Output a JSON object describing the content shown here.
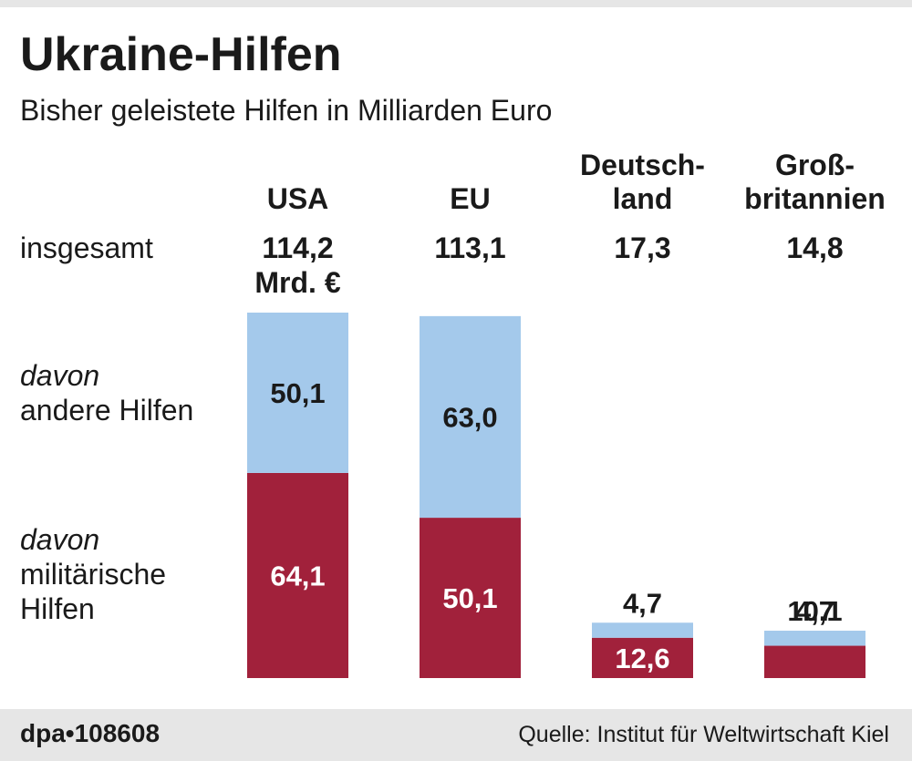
{
  "chart_data": {
    "type": "bar",
    "stacked": true,
    "title": "Ukraine-Hilfen",
    "subtitle": "Bisher geleistete Hilfen in Milliarden Euro",
    "categories": [
      "USA",
      "EU",
      "Deutsch-\nland",
      "Groß-\nbritannien"
    ],
    "total_row_label": "insgesamt",
    "totals": [
      114.2,
      113.1,
      17.3,
      14.8
    ],
    "total_labels": [
      "114,2",
      "113,1",
      "17,3",
      "14,8"
    ],
    "total_unit": "Mrd. €",
    "series_prefix": "davon",
    "series": [
      {
        "name": "militärische\nHilfen",
        "values": [
          64.1,
          50.1,
          12.6,
          10.1
        ],
        "value_labels": [
          "64,1",
          "50,1",
          "12,6",
          "10,1"
        ],
        "color": "#a1213b",
        "label_color": "#ffffff"
      },
      {
        "name": "andere Hilfen",
        "values": [
          50.1,
          63.0,
          4.7,
          4.7
        ],
        "value_labels": [
          "50,1",
          "63,0",
          "4,7",
          "4,7"
        ],
        "color": "#a4c9eb",
        "label_color": "#1a1a1a"
      }
    ],
    "legend_placement": "left",
    "grid": false
  },
  "footer": {
    "id": "dpa•108608",
    "source": "Quelle: Institut für Weltwirtschaft Kiel"
  }
}
